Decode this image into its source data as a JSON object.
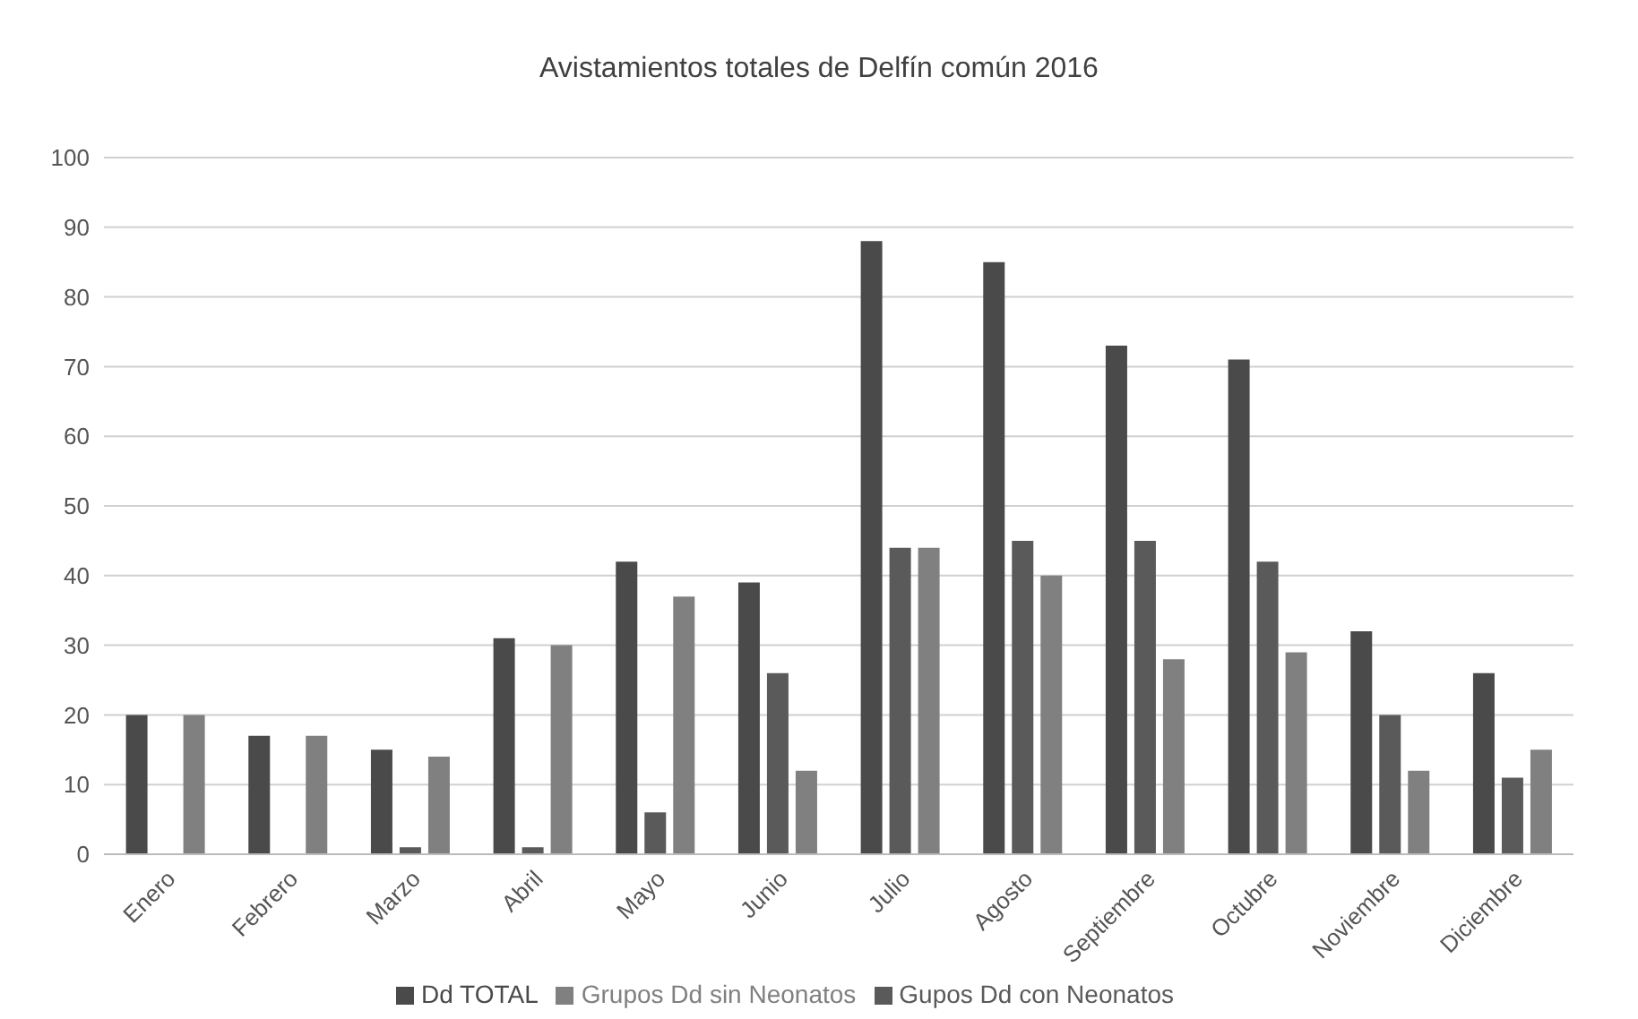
{
  "chart_data": {
    "type": "bar",
    "title": "Avistamientos totales de Delfín común 2016",
    "categories": [
      "Enero",
      "Febrero",
      "Marzo",
      "Abril",
      "Mayo",
      "Junio",
      "Julio",
      "Agosto",
      "Septiembre",
      "Octubre",
      "Noviembre",
      "Diciembre"
    ],
    "series": [
      {
        "name": "Dd TOTAL",
        "color": "#4a4a4a",
        "values": [
          20,
          17,
          15,
          31,
          42,
          39,
          88,
          85,
          73,
          71,
          32,
          26
        ]
      },
      {
        "name": "Gupos Dd con Neonatos",
        "color": "#5a5a5a",
        "values": [
          0,
          0,
          1,
          1,
          6,
          26,
          44,
          45,
          45,
          42,
          20,
          11
        ]
      },
      {
        "name": "Grupos  Dd sin Neonatos",
        "color": "#808080",
        "values": [
          20,
          17,
          14,
          30,
          37,
          12,
          44,
          40,
          28,
          29,
          12,
          15
        ]
      }
    ],
    "ylim": [
      0,
      100
    ],
    "yticks": [
      0,
      10,
      20,
      30,
      40,
      50,
      60,
      70,
      80,
      90,
      100
    ],
    "grid": "y",
    "legend": "bottom"
  }
}
